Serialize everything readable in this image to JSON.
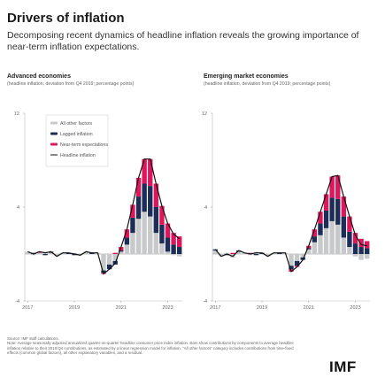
{
  "header": {
    "title": "Drivers of inflation",
    "subtitle": "Decomposing recent dynamics of headline inflation reveals the growing importance of near-term inflation expectations."
  },
  "panels": [
    {
      "title": "Advanced economies",
      "subtitle": "(headline inflation, deviation from Q4 2019; percentage points)"
    },
    {
      "title": "Emerging market economies",
      "subtitle": "(headline inflation, deviation from Q4 2019; percentage points)"
    }
  ],
  "legend": [
    "All other factors",
    "Lagged inflation",
    "Near-term expectations",
    "Headline inflation"
  ],
  "colors": {
    "all_other": "#c8c9cb",
    "lagged": "#1c2e57",
    "near_term": "#e0165c",
    "headline": "#111111"
  },
  "chart_data": [
    {
      "type": "bar",
      "title": "Advanced economies",
      "subtitle": "(headline inflation, deviation from Q4 2019; percentage points)",
      "x_labels": [
        "2017",
        "2019",
        "2021",
        "2023"
      ],
      "ylim": [
        -4,
        12
      ],
      "yticks": [
        -4,
        4,
        12
      ],
      "series": [
        {
          "name": "All other factors",
          "values": [
            0.2,
            -0.1,
            0.1,
            0.2,
            0.1,
            -0.2,
            0.1,
            0.0,
            0.1,
            -0.1,
            0.2,
            0.0,
            0.1,
            -1.4,
            -0.9,
            -0.6,
            0.2,
            0.8,
            1.8,
            3.0,
            3.6,
            3.2,
            1.8,
            0.9,
            0.2,
            -0.1,
            -0.2
          ]
        },
        {
          "name": "Lagged inflation",
          "values": [
            0.0,
            0.1,
            0.0,
            -0.1,
            0.1,
            0.0,
            0.0,
            0.1,
            -0.1,
            0.0,
            0.0,
            0.1,
            0.0,
            -0.2,
            -0.4,
            -0.3,
            0.1,
            0.6,
            1.3,
            1.9,
            2.4,
            2.6,
            2.2,
            1.6,
            1.2,
            0.8,
            0.6
          ]
        },
        {
          "name": "Near-term expectations",
          "values": [
            0.0,
            0.0,
            0.1,
            0.0,
            0.0,
            0.0,
            0.0,
            0.0,
            0.0,
            0.0,
            0.0,
            0.0,
            0.0,
            -0.1,
            0.0,
            0.1,
            0.3,
            0.7,
            1.1,
            1.6,
            2.1,
            2.3,
            2.0,
            1.6,
            1.2,
            1.0,
            0.9
          ]
        }
      ],
      "headline": [
        0.2,
        0.0,
        0.2,
        0.1,
        0.2,
        -0.2,
        0.1,
        0.1,
        0.0,
        -0.1,
        0.2,
        0.1,
        0.1,
        -1.7,
        -1.3,
        -0.8,
        0.6,
        2.1,
        4.2,
        6.5,
        8.1,
        8.1,
        6.0,
        4.1,
        2.6,
        1.7,
        1.3
      ]
    },
    {
      "type": "bar",
      "title": "Emerging market economies",
      "subtitle": "(headline inflation, deviation from Q4 2019; percentage points)",
      "x_labels": [
        "2017",
        "2019",
        "2021",
        "2023"
      ],
      "ylim": [
        -4,
        12
      ],
      "yticks": [
        -4,
        4,
        12
      ],
      "series": [
        {
          "name": "All other factors",
          "values": [
            0.3,
            -0.2,
            0.1,
            -0.3,
            0.2,
            0.1,
            -0.1,
            0.2,
            0.0,
            -0.2,
            0.1,
            0.0,
            0.1,
            -1.0,
            -0.6,
            -0.3,
            0.4,
            1.0,
            1.6,
            2.2,
            2.8,
            2.5,
            1.4,
            0.6,
            -0.2,
            -0.5,
            -0.4
          ]
        },
        {
          "name": "Lagged inflation",
          "values": [
            0.1,
            0.0,
            -0.1,
            0.0,
            0.1,
            0.0,
            0.0,
            -0.1,
            0.1,
            0.0,
            0.0,
            0.1,
            0.0,
            -0.3,
            -0.4,
            -0.2,
            0.1,
            0.5,
            1.0,
            1.5,
            2.0,
            2.2,
            1.8,
            1.3,
            0.9,
            0.6,
            0.5
          ]
        },
        {
          "name": "Near-term expectations",
          "values": [
            0.0,
            0.0,
            0.0,
            0.1,
            0.0,
            0.0,
            0.1,
            0.0,
            0.0,
            0.0,
            0.0,
            0.0,
            0.0,
            -0.2,
            -0.1,
            0.0,
            0.2,
            0.6,
            1.0,
            1.4,
            1.8,
            2.0,
            1.7,
            1.3,
            0.9,
            0.7,
            0.6
          ]
        }
      ],
      "headline": [
        0.4,
        -0.2,
        0.0,
        -0.2,
        0.3,
        0.1,
        0.0,
        0.1,
        0.1,
        -0.2,
        0.1,
        0.1,
        0.1,
        -1.5,
        -1.1,
        -0.5,
        0.7,
        2.1,
        3.6,
        5.1,
        6.6,
        6.7,
        4.9,
        3.2,
        1.6,
        0.8,
        0.7
      ]
    }
  ],
  "footer": {
    "source": "Source: IMF staff calculations.",
    "note": "Note: Average seasonally adjusted annualized quarter-on-quarter headline consumer price index inflation. Bars show contributions by components to average headline inflation relative to their 2019:Q4 contributions, as estimated by a linear regression model for inflation. \"All other factors\" category includes contributions from time-fixed effects (common global factors), all other explanatory variables, and a residual.",
    "logo": "IMF"
  }
}
